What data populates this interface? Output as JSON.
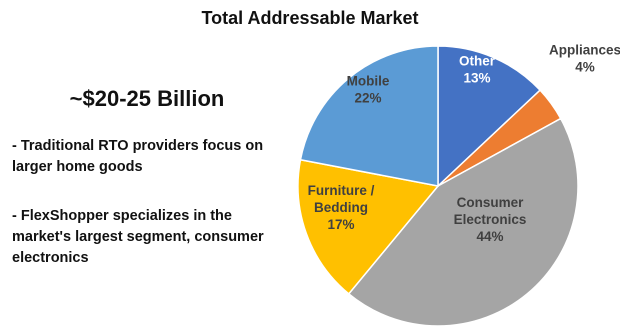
{
  "header": {
    "title": "Total Addressable Market"
  },
  "summary": {
    "headline": "~$20-25 Billion",
    "bullets": [
      "- Traditional RTO providers focus on larger home goods",
      "- FlexShopper specializes in the market's largest segment, consumer electronics"
    ]
  },
  "chart_data": {
    "type": "pie",
    "title": "Total Addressable Market",
    "slices": [
      {
        "label": "Other",
        "value": 13,
        "display": "13%",
        "color": "#4472c4",
        "label_color": "#ffffff"
      },
      {
        "label": "Appliances",
        "value": 4,
        "display": "4%",
        "color": "#ed7d31",
        "label_color": "#404040"
      },
      {
        "label": "Consumer Electronics",
        "value": 44,
        "display": "44%",
        "color": "#a5a5a5",
        "label_color": "#404040"
      },
      {
        "label": "Furniture / Bedding",
        "value": 17,
        "display": "17%",
        "color": "#ffc000",
        "label_color": "#404040"
      },
      {
        "label": "Mobile",
        "value": 22,
        "display": "22%",
        "color": "#5b9bd5",
        "label_color": "#404040"
      }
    ],
    "start_angle_deg": 0,
    "direction": "clockwise"
  }
}
